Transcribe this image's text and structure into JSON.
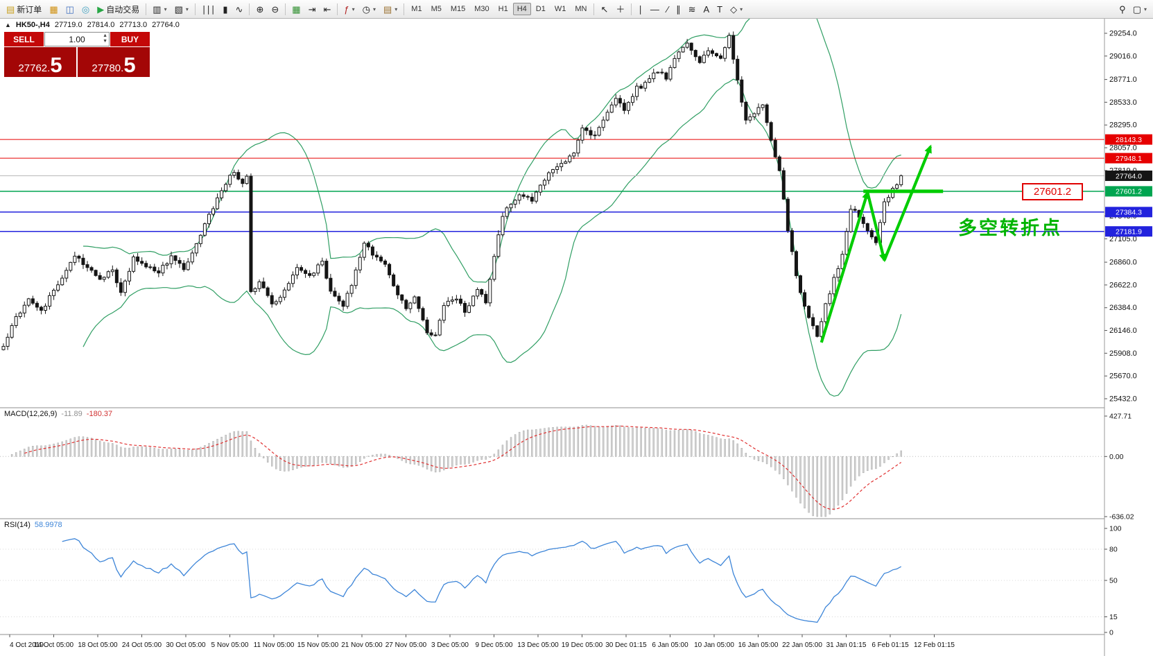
{
  "toolbar": {
    "items": [
      {
        "type": "button",
        "name": "new-order-button",
        "glyph": "▤",
        "glyph_color": "#c8a020",
        "label": "新订单"
      },
      {
        "type": "icon",
        "name": "market-watch-icon",
        "glyph": "▦",
        "glyph_color": "#d09010"
      },
      {
        "type": "icon",
        "name": "data-window-icon",
        "glyph": "◫",
        "glyph_color": "#3f6fbf"
      },
      {
        "type": "icon",
        "name": "navigator-icon",
        "glyph": "◎",
        "glyph_color": "#3f9fbf"
      },
      {
        "type": "button",
        "name": "auto-trading-button",
        "glyph": "▶",
        "glyph_color": "#28a745",
        "label": "自动交易"
      },
      {
        "type": "sep"
      },
      {
        "type": "icon",
        "name": "new-chart-icon",
        "glyph": "▥",
        "dropdown": true
      },
      {
        "type": "icon",
        "name": "profiles-icon",
        "glyph": "▧",
        "dropdown": true
      },
      {
        "type": "sep"
      },
      {
        "type": "icon",
        "name": "bar-chart-icon",
        "glyph": "∣∣∣"
      },
      {
        "type": "icon",
        "name": "candlestick-chart-icon",
        "glyph": "▮"
      },
      {
        "type": "icon",
        "name": "line-chart-icon",
        "glyph": "∿"
      },
      {
        "type": "sep"
      },
      {
        "type": "icon",
        "name": "zoom-in-icon",
        "glyph": "⊕"
      },
      {
        "type": "icon",
        "name": "zoom-out-icon",
        "glyph": "⊖"
      },
      {
        "type": "sep"
      },
      {
        "type": "icon",
        "name": "tile-windows-icon",
        "glyph": "▦",
        "glyph_color": "#2f8f2f"
      },
      {
        "type": "icon",
        "name": "auto-scroll-icon",
        "glyph": "⇥"
      },
      {
        "type": "icon",
        "name": "chart-shift-icon",
        "glyph": "⇤"
      },
      {
        "type": "sep"
      },
      {
        "type": "icon",
        "name": "indicators-button",
        "glyph": "ƒ",
        "glyph_color": "#b02020",
        "dropdown": true
      },
      {
        "type": "icon",
        "name": "periods-button",
        "glyph": "◷",
        "dropdown": true
      },
      {
        "type": "icon",
        "name": "templates-button",
        "glyph": "▤",
        "glyph_color": "#9a7030",
        "dropdown": true
      },
      {
        "type": "sep"
      },
      {
        "type": "tf",
        "name": "timeframe-m1",
        "label": "M1"
      },
      {
        "type": "tf",
        "name": "timeframe-m5",
        "label": "M5"
      },
      {
        "type": "tf",
        "name": "timeframe-m15",
        "label": "M15"
      },
      {
        "type": "tf",
        "name": "timeframe-m30",
        "label": "M30"
      },
      {
        "type": "tf",
        "name": "timeframe-h1",
        "label": "H1"
      },
      {
        "type": "tf",
        "name": "timeframe-h4",
        "label": "H4"
      },
      {
        "type": "tf",
        "name": "timeframe-d1",
        "label": "D1"
      },
      {
        "type": "tf",
        "name": "timeframe-w1",
        "label": "W1"
      },
      {
        "type": "tf",
        "name": "timeframe-mn",
        "label": "MN"
      },
      {
        "type": "sep"
      },
      {
        "type": "icon",
        "name": "cursor-icon",
        "glyph": "↖"
      },
      {
        "type": "icon",
        "name": "crosshair-icon",
        "glyph": "＋"
      },
      {
        "type": "sep"
      },
      {
        "type": "icon",
        "name": "vertical-line-icon",
        "glyph": "∣"
      },
      {
        "type": "icon",
        "name": "horizontal-line-icon",
        "glyph": "―"
      },
      {
        "type": "icon",
        "name": "trendline-icon",
        "glyph": "∕"
      },
      {
        "type": "icon",
        "name": "channel-icon",
        "glyph": "∥"
      },
      {
        "type": "icon",
        "name": "fibonacci-icon",
        "glyph": "≋"
      },
      {
        "type": "icon",
        "name": "text-icon",
        "glyph": "A"
      },
      {
        "type": "icon",
        "name": "label-icon",
        "glyph": "T"
      },
      {
        "type": "icon",
        "name": "shapes-button",
        "glyph": "◇",
        "dropdown": true
      }
    ],
    "right_items": [
      {
        "name": "search-icon",
        "glyph": "⚲"
      },
      {
        "name": "layout-icon",
        "glyph": "▢",
        "dropdown": true
      }
    ],
    "active_timeframe": "H4"
  },
  "chart_header": {
    "collapse_glyph": "▲",
    "symbol_period": "HK50-,H4",
    "open": "27719.0",
    "high": "27814.0",
    "low": "27713.0",
    "close": "27764.0"
  },
  "trade_panel": {
    "sell_label": "SELL",
    "buy_label": "BUY",
    "volume": "1.00",
    "spin_up": "▲",
    "spin_down": "▼",
    "sell_price_small": "27762.",
    "sell_price_big": "5",
    "buy_price_small": "27780.",
    "buy_price_big": "5"
  },
  "price_axis": {
    "ticks": [
      "29254.0",
      "29016.0",
      "28771.0",
      "28533.0",
      "28295.0",
      "28057.0",
      "27819.0",
      "27343.0",
      "27105.0",
      "26860.0",
      "26622.0",
      "26384.0",
      "26146.0",
      "25908.0",
      "25670.0",
      "25432.0"
    ],
    "badges": [
      {
        "value": "28143.3",
        "color": "#e60000"
      },
      {
        "value": "27948.1",
        "color": "#e60000"
      },
      {
        "value": "27764.0",
        "color": "#151515"
      },
      {
        "value": "27601.2",
        "color": "#00a550"
      },
      {
        "value": "27384.3",
        "color": "#2222dd"
      },
      {
        "value": "27181.9",
        "color": "#2222dd"
      }
    ]
  },
  "time_axis": {
    "labels": [
      "4 Oct 2019",
      "14 Oct 05:00",
      "18 Oct 05:00",
      "24 Oct 05:00",
      "30 Oct 05:00",
      "5 Nov 05:00",
      "11 Nov 05:00",
      "15 Nov 05:00",
      "21 Nov 05:00",
      "27 Nov 05:00",
      "3 Dec 05:00",
      "9 Dec 05:00",
      "13 Dec 05:00",
      "19 Dec 05:00",
      "30 Dec 01:15",
      "6 Jan 05:00",
      "10 Jan 05:00",
      "16 Jan 05:00",
      "22 Jan 05:00",
      "31 Jan 01:15",
      "6 Feb 01:15",
      "12 Feb 01:15"
    ]
  },
  "hlines": [
    {
      "price": 28143.3,
      "color": "#e60000",
      "width": 1
    },
    {
      "price": 27948.1,
      "color": "#e60000",
      "width": 1
    },
    {
      "price": 27601.2,
      "color": "#00a550",
      "width": 1.5
    },
    {
      "price": 27384.3,
      "color": "#2222dd",
      "width": 1.5
    },
    {
      "price": 27181.9,
      "color": "#2222dd",
      "width": 1.5
    }
  ],
  "current_price": 27764.0,
  "annotations": {
    "price_label": {
      "text": "27601.2",
      "color": "#e00000"
    },
    "note": {
      "text": "多空转折点",
      "color": "#00b400"
    },
    "highlight_line": {
      "from_idx": 205,
      "to_idx": 224,
      "price": 27601.2,
      "width": 5,
      "color": "#00cc00"
    },
    "arrows": [
      {
        "from_idx": 195,
        "from_price": 26020,
        "to_idx": 206,
        "to_price": 27590,
        "head": true
      },
      {
        "from_idx": 206,
        "from_price": 27590,
        "to_idx": 210,
        "to_price": 26880,
        "head": true
      },
      {
        "from_idx": 210,
        "from_price": 26880,
        "to_idx": 221,
        "to_price": 28070,
        "head": true
      }
    ],
    "arrow_color": "#00cc00"
  },
  "macd": {
    "label": "MACD(12,26,9)",
    "value": "-11.89",
    "signal": "-180.37",
    "axis": [
      "427.71",
      "0.00",
      "-636.02"
    ]
  },
  "rsi": {
    "label": "RSI(14)",
    "value": "58.9978",
    "axis": [
      "100",
      "80",
      "50",
      "15",
      "0"
    ],
    "levels": [
      80,
      50,
      15
    ]
  },
  "chart_data": {
    "type": "candlestick",
    "symbol": "HK50-,H4",
    "candles_count": 215,
    "ylim": [
      25432,
      29254
    ],
    "macd_ylim": [
      -636.02,
      427.71
    ],
    "rsi_ylim": [
      0,
      100
    ],
    "up_color": "#ffffff",
    "down_color": "#151515",
    "bollinger": {
      "period": 20,
      "deviation": 2,
      "color": "#2f9e63"
    },
    "close_anchors": [
      [
        0,
        25980
      ],
      [
        3,
        26280
      ],
      [
        6,
        26480
      ],
      [
        9,
        26350
      ],
      [
        12,
        26560
      ],
      [
        17,
        26920
      ],
      [
        20,
        26820
      ],
      [
        23,
        26680
      ],
      [
        26,
        26780
      ],
      [
        28,
        26550
      ],
      [
        31,
        26900
      ],
      [
        34,
        26820
      ],
      [
        37,
        26750
      ],
      [
        40,
        26920
      ],
      [
        43,
        26780
      ],
      [
        46,
        27050
      ],
      [
        49,
        27350
      ],
      [
        52,
        27600
      ],
      [
        55,
        27820
      ],
      [
        57,
        27680
      ],
      [
        58,
        27760
      ],
      [
        59,
        26550
      ],
      [
        61,
        26650
      ],
      [
        64,
        26420
      ],
      [
        67,
        26550
      ],
      [
        70,
        26820
      ],
      [
        73,
        26700
      ],
      [
        76,
        26880
      ],
      [
        78,
        26550
      ],
      [
        81,
        26420
      ],
      [
        83,
        26620
      ],
      [
        86,
        27080
      ],
      [
        88,
        26950
      ],
      [
        91,
        26820
      ],
      [
        93,
        26620
      ],
      [
        96,
        26380
      ],
      [
        98,
        26520
      ],
      [
        101,
        26120
      ],
      [
        103,
        26080
      ],
      [
        105,
        26420
      ],
      [
        108,
        26480
      ],
      [
        110,
        26350
      ],
      [
        113,
        26580
      ],
      [
        115,
        26450
      ],
      [
        117,
        26900
      ],
      [
        119,
        27350
      ],
      [
        121,
        27480
      ],
      [
        123,
        27580
      ],
      [
        126,
        27500
      ],
      [
        128,
        27680
      ],
      [
        131,
        27820
      ],
      [
        133,
        27880
      ],
      [
        136,
        28020
      ],
      [
        138,
        28260
      ],
      [
        141,
        28180
      ],
      [
        143,
        28330
      ],
      [
        146,
        28570
      ],
      [
        148,
        28460
      ],
      [
        151,
        28680
      ],
      [
        153,
        28720
      ],
      [
        156,
        28870
      ],
      [
        158,
        28790
      ],
      [
        161,
        29060
      ],
      [
        163,
        29160
      ],
      [
        166,
        28960
      ],
      [
        168,
        29070
      ],
      [
        171,
        29000
      ],
      [
        173,
        29210
      ],
      [
        175,
        28750
      ],
      [
        177,
        28350
      ],
      [
        179,
        28420
      ],
      [
        181,
        28520
      ],
      [
        183,
        28120
      ],
      [
        185,
        27800
      ],
      [
        187,
        27200
      ],
      [
        188,
        26950
      ],
      [
        190,
        26520
      ],
      [
        192,
        26300
      ],
      [
        194,
        26080
      ],
      [
        196,
        26420
      ],
      [
        198,
        26680
      ],
      [
        200,
        26950
      ],
      [
        202,
        27420
      ],
      [
        204,
        27350
      ],
      [
        206,
        27180
      ],
      [
        208,
        27080
      ],
      [
        210,
        27480
      ],
      [
        212,
        27620
      ],
      [
        214,
        27764
      ]
    ]
  }
}
